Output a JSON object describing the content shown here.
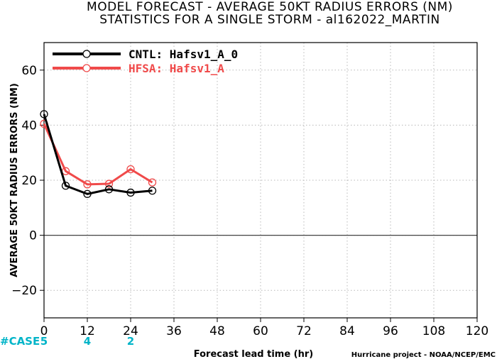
{
  "chart_data": {
    "type": "line",
    "title": "MODEL FORECAST - AVERAGE 50KT RADIUS ERRORS (NM)",
    "subtitle": "STATISTICS FOR A SINGLE STORM - al162022_MARTIN",
    "xlabel": "Forecast lead time (hr)",
    "ylabel": "AVERAGE 50KT RADIUS ERRORS (NM)",
    "xlim": [
      0,
      120
    ],
    "ylim": [
      -30,
      70
    ],
    "xticks": [
      0,
      12,
      24,
      36,
      48,
      60,
      72,
      84,
      96,
      108,
      120
    ],
    "yticks": [
      -20,
      0,
      20,
      40,
      60
    ],
    "grid": true,
    "legend_position": "top-left",
    "series": [
      {
        "name": "CNTL: Hafsv1_A_0",
        "color": "#000000",
        "x": [
          0,
          6,
          12,
          18,
          24,
          30
        ],
        "values": [
          44,
          18,
          15,
          16.7,
          15.5,
          16.2
        ]
      },
      {
        "name": "HFSA: Hafsv1_A",
        "color": "#f04a4a",
        "x": [
          0,
          6,
          12,
          18,
          24,
          30
        ],
        "values": [
          40.5,
          23.3,
          18.5,
          18.7,
          24,
          19.2
        ]
      }
    ],
    "cases": {
      "label": "#CASE",
      "color": "#00b4c8",
      "x": [
        0,
        12,
        24
      ],
      "values": [
        "5",
        "4",
        "2"
      ]
    },
    "credit": "Hurricane project - NOAA/NCEP/EMC"
  }
}
